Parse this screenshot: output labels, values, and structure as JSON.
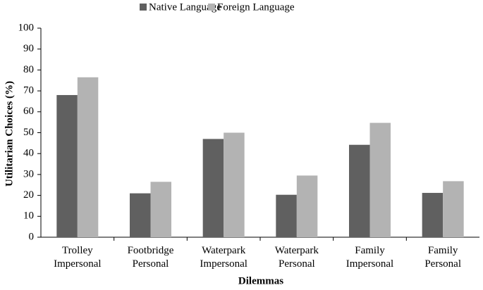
{
  "chart_data": {
    "type": "bar",
    "categories": [
      "Trolley Impersonal",
      "Footbridge Personal",
      "Waterpark Impersonal",
      "Waterpark Personal",
      "Family Impersonal",
      "Family Personal"
    ],
    "series": [
      {
        "name": "Native Language",
        "color": "#606060",
        "values": [
          68,
          21,
          47,
          20.3,
          44.2,
          21.2
        ]
      },
      {
        "name": "Foreign Language",
        "color": "#b3b3b3",
        "values": [
          76.5,
          26.5,
          50,
          29.5,
          54.7,
          26.8
        ]
      }
    ],
    "xlabel": "Dilemmas",
    "ylabel": "Utilitarian Choices (%)",
    "ylim": [
      0,
      100
    ],
    "yticks": [
      0,
      10,
      20,
      30,
      40,
      50,
      60,
      70,
      80,
      90,
      100
    ],
    "grid": false,
    "legend": "top"
  }
}
